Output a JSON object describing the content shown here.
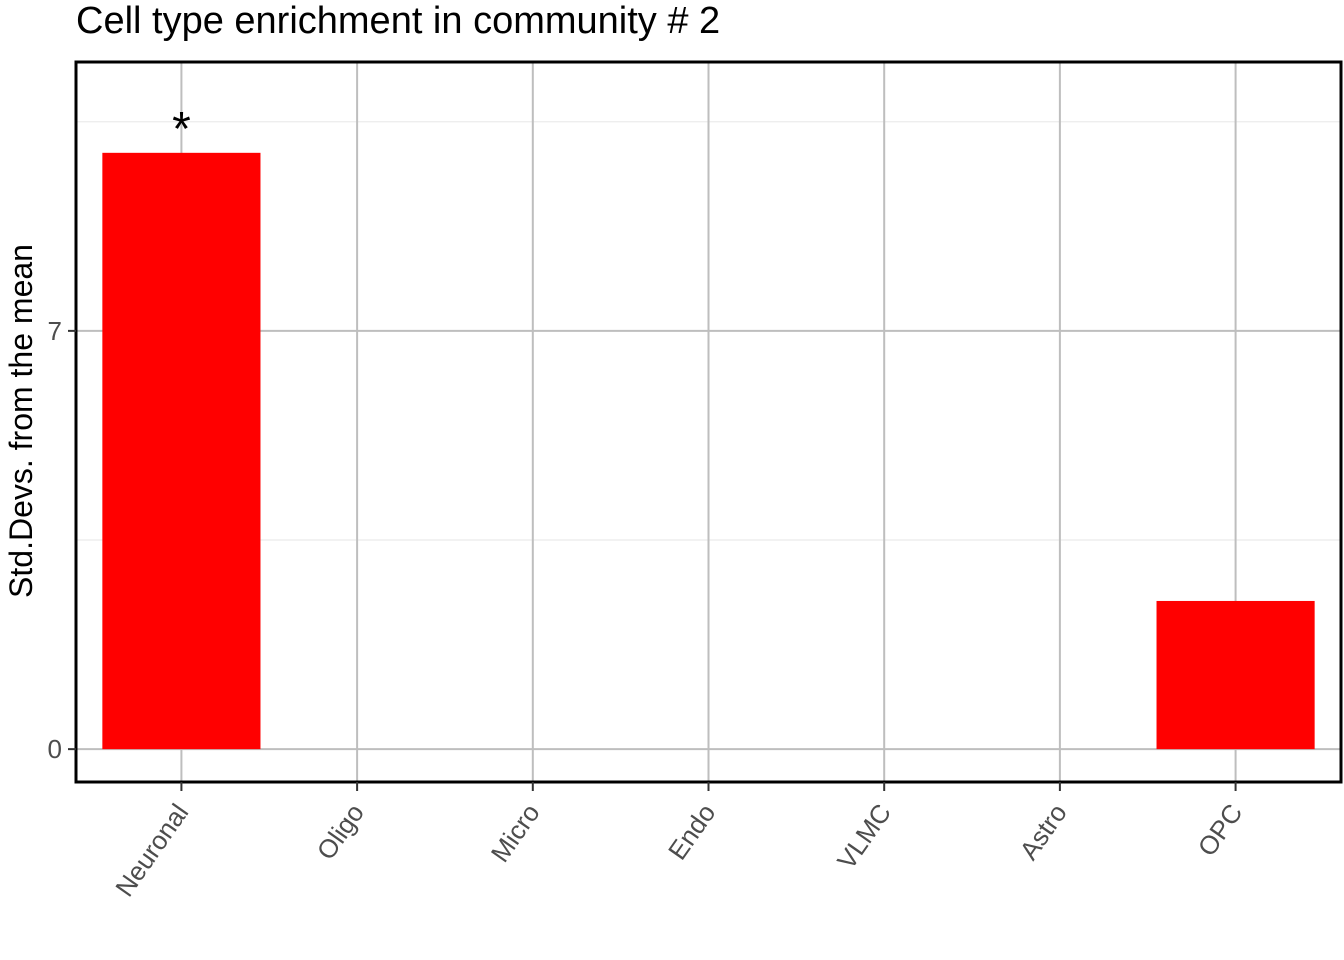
{
  "chart_data": {
    "type": "bar",
    "title": "Cell type enrichment in community # 2",
    "xlabel": "",
    "ylabel": "Std.Devs. from the mean",
    "categories": [
      "Neuronal",
      "Oligo",
      "Micro",
      "Endo",
      "VLMC",
      "Astro",
      "OPC"
    ],
    "values": [
      9.98,
      0,
      0,
      0,
      0,
      0,
      2.48
    ],
    "significance": [
      "*",
      "",
      "",
      "",
      "",
      "",
      ""
    ],
    "ylim": [
      -0.55,
      11.5
    ],
    "yticks": [
      0,
      7
    ],
    "grid": true,
    "bar_color": "#ff0000",
    "legend": "none"
  }
}
